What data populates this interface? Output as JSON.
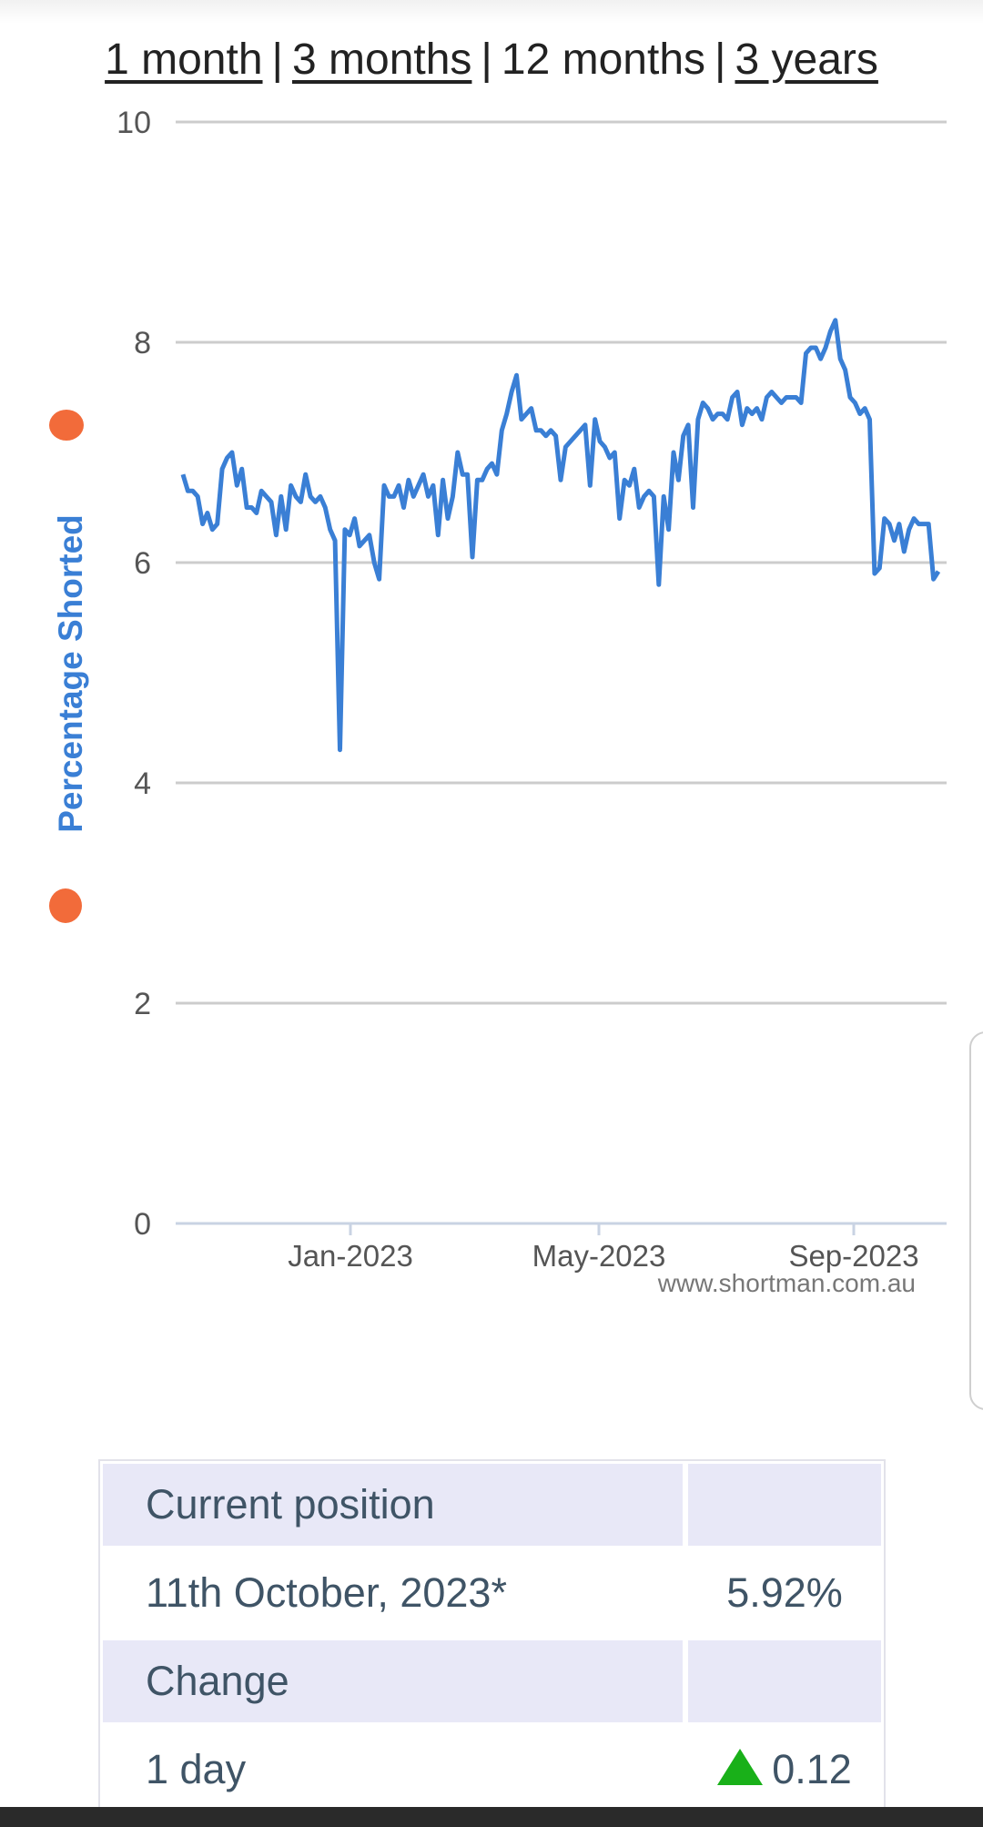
{
  "nav": {
    "one_month": "1 month",
    "three_months": "3 months",
    "twelve_months": "12 months",
    "three_years": "3 years",
    "separator": "|"
  },
  "chart_data": {
    "type": "line",
    "ylabel": "Percentage Shorted",
    "ylim": [
      0,
      10
    ],
    "yticks": [
      0,
      2,
      4,
      6,
      8,
      10
    ],
    "xticks": [
      "Jan-2023",
      "May-2023",
      "Sep-2023"
    ],
    "grid": true,
    "legend": "none",
    "watermark": "www.shortman.com.au",
    "line_color": "#3a7fd5",
    "ylabel_color": "#3a7fd5",
    "marker_color": "#f26b3a",
    "series": [
      {
        "values": [
          6.8,
          6.65,
          6.65,
          6.6,
          6.35,
          6.45,
          6.3,
          6.35,
          6.85,
          6.95,
          7.0,
          6.7,
          6.85,
          6.5,
          6.5,
          6.45,
          6.65,
          6.6,
          6.55,
          6.25,
          6.6,
          6.3,
          6.7,
          6.6,
          6.55,
          6.8,
          6.6,
          6.55,
          6.6,
          6.5,
          6.3,
          6.2,
          4.3,
          6.3,
          6.25,
          6.4,
          6.15,
          6.2,
          6.25,
          6.0,
          5.85,
          6.7,
          6.6,
          6.6,
          6.7,
          6.5,
          6.75,
          6.6,
          6.7,
          6.8,
          6.6,
          6.7,
          6.25,
          6.75,
          6.4,
          6.6,
          7.0,
          6.8,
          6.8,
          6.05,
          6.75,
          6.75,
          6.85,
          6.9,
          6.8,
          7.2,
          7.35,
          7.55,
          7.7,
          7.3,
          7.35,
          7.4,
          7.2,
          7.2,
          7.15,
          7.2,
          7.15,
          6.75,
          7.05,
          7.1,
          7.15,
          7.2,
          7.25,
          6.7,
          7.3,
          7.1,
          7.05,
          6.95,
          7.0,
          6.4,
          6.75,
          6.7,
          6.85,
          6.5,
          6.6,
          6.65,
          6.6,
          5.8,
          6.6,
          6.3,
          7.0,
          6.75,
          7.15,
          7.25,
          6.5,
          7.3,
          7.45,
          7.4,
          7.3,
          7.35,
          7.35,
          7.3,
          7.5,
          7.55,
          7.25,
          7.4,
          7.35,
          7.4,
          7.3,
          7.5,
          7.55,
          7.5,
          7.45,
          7.5,
          7.5,
          7.5,
          7.45,
          7.9,
          7.95,
          7.95,
          7.85,
          7.95,
          8.1,
          8.2,
          7.85,
          7.75,
          7.5,
          7.45,
          7.35,
          7.4,
          7.3,
          5.9,
          5.95,
          6.4,
          6.35,
          6.2,
          6.35,
          6.1,
          6.3,
          6.4,
          6.35,
          6.35,
          6.35,
          5.85,
          5.92
        ]
      }
    ]
  },
  "table": {
    "current_header": "Current position",
    "date_label": "11th October, 2023*",
    "current_value": "5.92%",
    "change_header": "Change",
    "one_day_label": "1 day",
    "one_day_value": "0.12",
    "up_color": "#19b019",
    "header_bg": "#e8e8f7"
  }
}
